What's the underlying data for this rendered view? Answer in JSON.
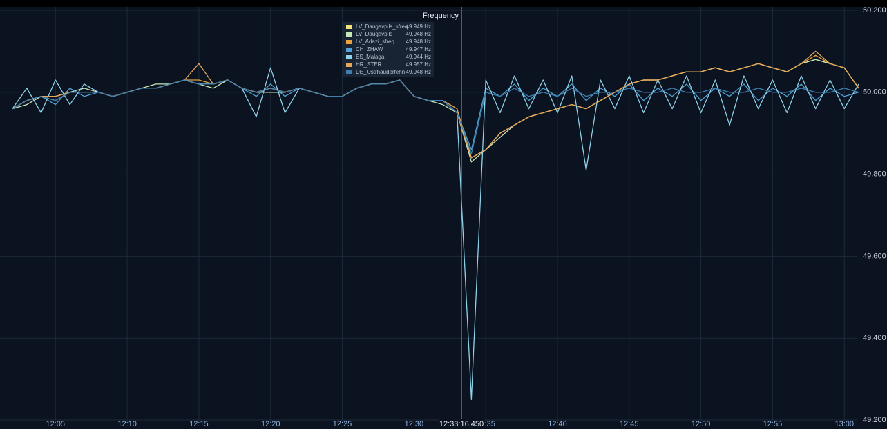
{
  "chart_data": {
    "type": "line",
    "title": "Frequency",
    "cursor_label": "12:33:16.450",
    "x": [
      "12:02",
      "12:03",
      "12:04",
      "12:05",
      "12:06",
      "12:07",
      "12:08",
      "12:09",
      "12:10",
      "12:11",
      "12:12",
      "12:13",
      "12:14",
      "12:15",
      "12:16",
      "12:17",
      "12:18",
      "12:19",
      "12:20",
      "12:21",
      "12:22",
      "12:23",
      "12:24",
      "12:25",
      "12:26",
      "12:27",
      "12:28",
      "12:29",
      "12:30",
      "12:31",
      "12:32",
      "12:33",
      "12:34",
      "12:35",
      "12:36",
      "12:37",
      "12:38",
      "12:39",
      "12:40",
      "12:41",
      "12:42",
      "12:43",
      "12:44",
      "12:45",
      "12:46",
      "12:47",
      "12:48",
      "12:49",
      "12:50",
      "12:51",
      "12:52",
      "12:53",
      "12:54",
      "12:55",
      "12:56",
      "12:57",
      "12:58",
      "12:59",
      "13:00",
      "13:01"
    ],
    "xlim": [
      "12:02",
      "13:01"
    ],
    "xticks": [
      "12:05",
      "12:10",
      "12:15",
      "12:20",
      "12:25",
      "12:30",
      "12:35",
      "12:40",
      "12:45",
      "12:50",
      "12:55",
      "13:00"
    ],
    "ylim": [
      49.2,
      50.2
    ],
    "yticks": [
      {
        "value": 49.2,
        "label": "49.200"
      },
      {
        "value": 49.4,
        "label": "49.400"
      },
      {
        "value": 49.6,
        "label": "49.600"
      },
      {
        "value": 49.8,
        "label": "49.800"
      },
      {
        "value": 50.0,
        "label": "50.000"
      },
      {
        "value": 50.2,
        "label": "50.200"
      }
    ],
    "grid": true,
    "series": [
      {
        "name": "LV_Daugavpils_sfreq",
        "value_label": "49.949 Hz",
        "color": "#f2e37a",
        "values": [
          49.96,
          49.98,
          49.99,
          49.99,
          50.0,
          50.0,
          50.0,
          49.99,
          50.0,
          50.01,
          50.01,
          50.02,
          50.03,
          50.02,
          50.02,
          50.03,
          50.01,
          50.0,
          50.01,
          50.0,
          50.01,
          50.0,
          49.99,
          49.99,
          50.01,
          50.02,
          50.02,
          50.03,
          49.99,
          49.98,
          49.98,
          49.95,
          49.84,
          49.86,
          49.9,
          49.92,
          49.94,
          49.95,
          49.96,
          49.97,
          49.96,
          49.98,
          50.0,
          50.02,
          50.03,
          50.03,
          50.04,
          50.05,
          50.05,
          50.06,
          50.05,
          50.06,
          50.07,
          50.06,
          50.05,
          50.07,
          50.08,
          50.07,
          50.06,
          50.01
        ]
      },
      {
        "name": "LV_Daugavpils",
        "value_label": "49.948 Hz",
        "color": "#c9e6b8",
        "values": [
          49.96,
          49.97,
          49.99,
          49.98,
          50.0,
          50.01,
          50.0,
          49.99,
          50.0,
          50.01,
          50.02,
          50.02,
          50.03,
          50.02,
          50.01,
          50.03,
          50.01,
          50.0,
          50.0,
          50.0,
          50.01,
          50.0,
          49.99,
          49.99,
          50.01,
          50.02,
          50.02,
          50.03,
          49.99,
          49.98,
          49.97,
          49.95,
          49.83,
          49.86,
          49.89,
          49.92,
          49.94,
          49.95,
          49.96,
          49.97,
          49.96,
          49.98,
          50.0,
          50.02,
          50.03,
          50.03,
          50.04,
          50.05,
          50.05,
          50.06,
          50.05,
          50.06,
          50.07,
          50.06,
          50.05,
          50.07,
          50.08,
          50.07,
          50.06,
          50.01
        ]
      },
      {
        "name": "LV_Adazi_sfreq",
        "value_label": "49.948 Hz",
        "color": "#e8a33a",
        "values": [
          49.96,
          49.98,
          49.99,
          49.99,
          50.0,
          50.0,
          50.0,
          49.99,
          50.0,
          50.01,
          50.01,
          50.02,
          50.03,
          50.03,
          50.02,
          50.03,
          50.01,
          50.0,
          50.01,
          50.0,
          50.01,
          50.0,
          49.99,
          49.99,
          50.01,
          50.02,
          50.02,
          50.03,
          49.99,
          49.98,
          49.98,
          49.95,
          49.84,
          49.86,
          49.9,
          49.92,
          49.94,
          49.95,
          49.96,
          49.97,
          49.96,
          49.98,
          50.0,
          50.02,
          50.03,
          50.03,
          50.04,
          50.05,
          50.05,
          50.06,
          50.05,
          50.06,
          50.07,
          50.06,
          50.05,
          50.07,
          50.09,
          50.07,
          50.06,
          50.01
        ]
      },
      {
        "name": "CH_ZHAW",
        "value_label": "49.947 Hz",
        "color": "#4fa3d6",
        "values": [
          49.96,
          49.98,
          49.99,
          49.97,
          50.01,
          49.99,
          50.0,
          49.99,
          50.0,
          50.01,
          50.01,
          50.02,
          50.03,
          50.02,
          50.02,
          50.03,
          50.01,
          49.99,
          50.02,
          49.99,
          50.01,
          50.0,
          49.99,
          49.99,
          50.01,
          50.02,
          50.02,
          50.03,
          49.99,
          49.98,
          49.98,
          49.95,
          49.86,
          50.01,
          49.99,
          50.02,
          49.98,
          50.01,
          49.99,
          50.02,
          49.98,
          50.01,
          49.99,
          50.02,
          49.98,
          50.01,
          49.99,
          50.02,
          49.98,
          50.01,
          49.99,
          50.02,
          49.98,
          50.01,
          49.99,
          50.02,
          49.98,
          50.01,
          49.99,
          50.0
        ]
      },
      {
        "name": "ES_Malaga",
        "value_label": "49.944 Hz",
        "color": "#8fd3e8",
        "values": [
          49.96,
          50.01,
          49.95,
          50.03,
          49.97,
          50.02,
          50.0,
          49.99,
          50.0,
          50.01,
          50.01,
          50.02,
          50.03,
          50.02,
          50.02,
          50.03,
          50.01,
          49.94,
          50.06,
          49.95,
          50.01,
          50.0,
          49.99,
          49.99,
          50.01,
          50.02,
          50.02,
          50.03,
          49.99,
          49.98,
          49.98,
          49.95,
          49.25,
          50.03,
          49.95,
          50.04,
          49.96,
          50.03,
          49.95,
          50.04,
          49.81,
          50.03,
          49.96,
          50.04,
          49.95,
          50.03,
          49.96,
          50.04,
          49.95,
          50.03,
          49.92,
          50.04,
          49.96,
          50.03,
          49.95,
          50.04,
          49.96,
          50.03,
          49.96,
          50.02
        ]
      },
      {
        "name": "HR_STER",
        "value_label": "49.957 Hz",
        "color": "#e5a85a",
        "values": [
          49.96,
          49.98,
          49.99,
          49.99,
          50.0,
          50.0,
          50.0,
          49.99,
          50.0,
          50.01,
          50.01,
          50.02,
          50.03,
          50.07,
          50.02,
          50.03,
          50.01,
          50.0,
          50.01,
          50.0,
          50.01,
          50.0,
          49.99,
          49.99,
          50.01,
          50.02,
          50.02,
          50.03,
          49.99,
          49.98,
          49.98,
          49.96,
          49.84,
          49.86,
          49.9,
          49.92,
          49.94,
          49.95,
          49.96,
          49.97,
          49.96,
          49.98,
          50.0,
          50.02,
          50.03,
          50.03,
          50.04,
          50.05,
          50.05,
          50.06,
          50.05,
          50.06,
          50.07,
          50.06,
          50.05,
          50.07,
          50.1,
          50.07,
          50.06,
          50.01
        ]
      },
      {
        "name": "DE_Ostrhauderfehn",
        "value_label": "49.948 Hz",
        "color": "#3f7fae",
        "values": [
          49.96,
          49.98,
          49.99,
          49.98,
          50.0,
          50.0,
          50.0,
          49.99,
          50.0,
          50.01,
          50.01,
          50.02,
          50.03,
          50.02,
          50.02,
          50.03,
          50.01,
          50.0,
          50.01,
          50.0,
          50.01,
          50.0,
          49.99,
          49.99,
          50.01,
          50.02,
          50.02,
          50.03,
          49.99,
          49.98,
          49.98,
          49.95,
          49.85,
          50.0,
          49.99,
          50.01,
          49.99,
          50.0,
          49.99,
          50.01,
          49.99,
          50.0,
          50.0,
          50.01,
          50.0,
          50.0,
          50.01,
          50.0,
          50.0,
          50.01,
          50.0,
          50.0,
          50.01,
          50.0,
          50.0,
          50.01,
          50.0,
          50.0,
          50.01,
          50.0
        ]
      }
    ]
  }
}
